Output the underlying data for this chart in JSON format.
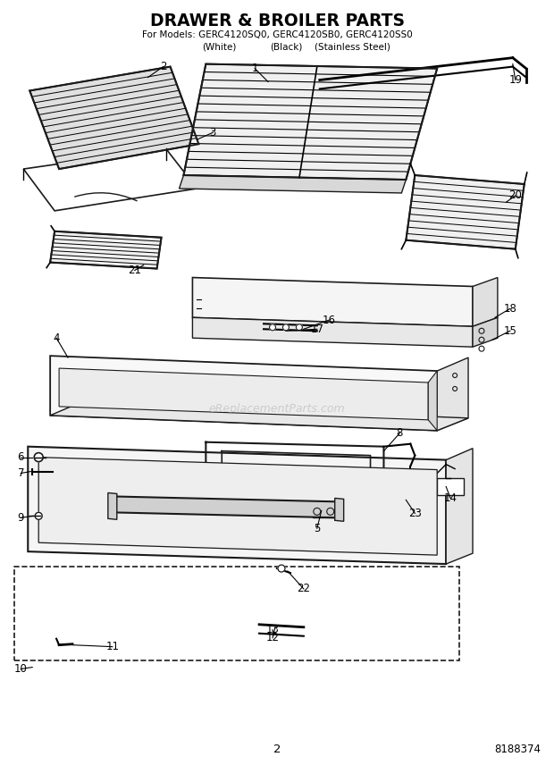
{
  "title_line1": "DRAWER & BROILER PARTS",
  "title_line2": "For Models: GERC4120SQ0, GERC4120SB0, GERC4120SS0",
  "title_line3_white": "(White)",
  "title_line3_black": "(Black)",
  "title_line3_ss": "(Stainless Steel)",
  "page_number": "2",
  "part_number": "8188374",
  "bg_color": "#ffffff",
  "watermark": "eReplacementParts.com",
  "line_color": "#1a1a1a"
}
